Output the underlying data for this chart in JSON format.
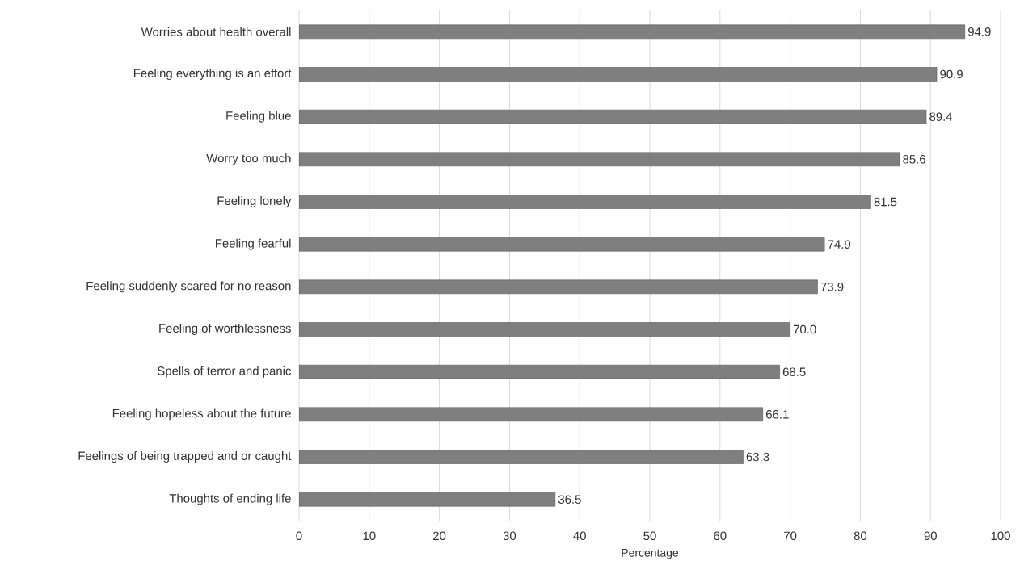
{
  "chart_data": {
    "type": "bar",
    "orientation": "horizontal",
    "xlabel": "Percentage",
    "categories": [
      "Worries about health overall",
      "Feeling everything is an effort",
      "Feeling blue",
      "Worry too much",
      "Feeling lonely",
      "Feeling fearful",
      "Feeling suddenly scared for no reason",
      "Feeling of worthlessness",
      "Spells of terror and panic",
      "Feeling hopeless about the future",
      "Feelings of being trapped and or caught",
      "Thoughts of ending life"
    ],
    "values": [
      94.9,
      90.9,
      89.4,
      85.6,
      81.5,
      74.9,
      73.9,
      70.0,
      68.5,
      66.1,
      63.3,
      36.5
    ],
    "value_labels": [
      "94.9",
      "90.9",
      "89.4",
      "85.6",
      "81.5",
      "74.9",
      "73.9",
      "70.0",
      "68.5",
      "66.1",
      "63.3",
      "36.5"
    ],
    "color": "#7f7f7f",
    "xlim": [
      0,
      100
    ],
    "xticks": [
      0,
      10,
      20,
      30,
      40,
      50,
      60,
      70,
      80,
      90,
      100
    ],
    "grid": "x"
  }
}
